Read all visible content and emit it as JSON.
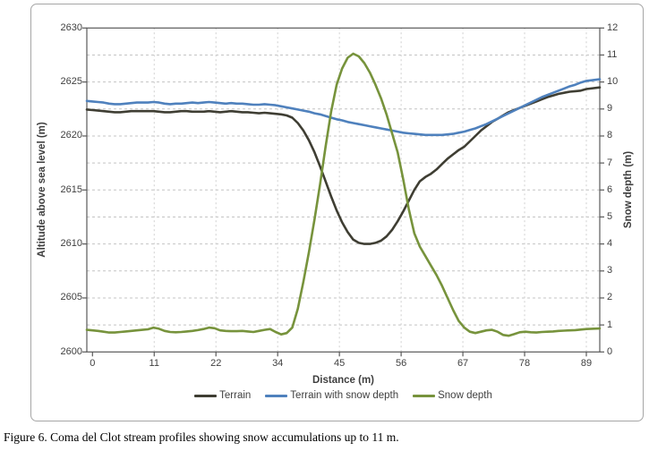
{
  "figure": {
    "caption": "Figure 6. Coma del Clot stream profiles showing snow accumulations up to 11 m."
  },
  "colors": {
    "terrain_line": "#3f3e33",
    "terrain_with_snow_line": "#4f81bd",
    "snow_depth_line": "#77933c",
    "gridline_horizontal": "#c4c4c4",
    "gridline_vertical": "#cfcfcf",
    "axis_frame": "#595959",
    "tick_text": "#3f3f3f",
    "outer_border": "#a6a6a6"
  },
  "chart_data": {
    "type": "line",
    "title": "",
    "xlabel": "Distance (m)",
    "ylabel_left": "Altitude above sea level (m)",
    "ylabel_right": "Snow depth (m)",
    "x_ticks": [
      0,
      11,
      22,
      34,
      45,
      56,
      67,
      78,
      89
    ],
    "x_start": 0,
    "x_step": 1,
    "ylim_left": [
      2600,
      2630
    ],
    "yticks_left": [
      2600,
      2605,
      2610,
      2615,
      2620,
      2625,
      2630
    ],
    "ylim_right": [
      0,
      12
    ],
    "yticks_right": [
      0,
      1,
      2,
      3,
      4,
      5,
      6,
      7,
      8,
      9,
      10,
      11,
      12
    ],
    "grid": true,
    "legend_position": "bottom",
    "series": [
      {
        "name": "Terrain",
        "axis": "left",
        "color": "#3f3e33",
        "values": [
          2622.4,
          2622.35,
          2622.3,
          2622.25,
          2622.2,
          2622.2,
          2622.25,
          2622.3,
          2622.3,
          2622.3,
          2622.3,
          2622.3,
          2622.25,
          2622.2,
          2622.2,
          2622.25,
          2622.3,
          2622.3,
          2622.25,
          2622.25,
          2622.25,
          2622.3,
          2622.25,
          2622.2,
          2622.25,
          2622.3,
          2622.25,
          2622.2,
          2622.2,
          2622.15,
          2622.1,
          2622.15,
          2622.1,
          2622.05,
          2622.0,
          2621.9,
          2621.7,
          2621.2,
          2620.5,
          2619.6,
          2618.5,
          2617.2,
          2615.8,
          2614.4,
          2613.1,
          2612.0,
          2611.1,
          2610.4,
          2610.1,
          2610.0,
          2610.0,
          2610.1,
          2610.3,
          2610.7,
          2611.3,
          2612.1,
          2613.0,
          2614.0,
          2615.0,
          2615.8,
          2616.2,
          2616.5,
          2616.9,
          2617.4,
          2617.9,
          2618.3,
          2618.7,
          2619.0,
          2619.5,
          2620.0,
          2620.5,
          2620.9,
          2621.3,
          2621.6,
          2621.9,
          2622.2,
          2622.4,
          2622.6,
          2622.8,
          2623.0,
          2623.2,
          2623.4,
          2623.6,
          2623.75,
          2623.9,
          2624.0,
          2624.1,
          2624.15,
          2624.2,
          2624.35
        ]
      },
      {
        "name": "Terrain with snow depth",
        "axis": "left",
        "color": "#4f81bd",
        "values": [
          2623.2,
          2623.15,
          2623.1,
          2623.0,
          2622.95,
          2622.95,
          2623.0,
          2623.05,
          2623.1,
          2623.1,
          2623.1,
          2623.15,
          2623.1,
          2623.0,
          2622.95,
          2623.0,
          2623.0,
          2623.05,
          2623.1,
          2623.05,
          2623.1,
          2623.15,
          2623.1,
          2623.05,
          2623.0,
          2623.05,
          2623.0,
          2623.0,
          2622.95,
          2622.9,
          2622.9,
          2622.95,
          2622.9,
          2622.85,
          2622.75,
          2622.65,
          2622.55,
          2622.45,
          2622.35,
          2622.25,
          2622.1,
          2622.0,
          2621.85,
          2621.7,
          2621.55,
          2621.45,
          2621.3,
          2621.2,
          2621.1,
          2621.0,
          2620.9,
          2620.8,
          2620.7,
          2620.6,
          2620.5,
          2620.4,
          2620.3,
          2620.25,
          2620.2,
          2620.15,
          2620.1,
          2620.1,
          2620.1,
          2620.1,
          2620.15,
          2620.2,
          2620.3,
          2620.4,
          2620.55,
          2620.7,
          2620.9,
          2621.1,
          2621.35,
          2621.6,
          2621.85,
          2622.1,
          2622.35,
          2622.6,
          2622.85,
          2623.1,
          2623.35,
          2623.6,
          2623.8,
          2624.0,
          2624.2,
          2624.4,
          2624.6,
          2624.75,
          2624.95,
          2625.1
        ]
      },
      {
        "name": "Snow depth",
        "axis": "right",
        "color": "#77933c",
        "values": [
          0.8,
          0.78,
          0.75,
          0.72,
          0.72,
          0.74,
          0.76,
          0.78,
          0.8,
          0.82,
          0.84,
          0.9,
          0.86,
          0.78,
          0.74,
          0.73,
          0.74,
          0.76,
          0.78,
          0.81,
          0.85,
          0.9,
          0.88,
          0.8,
          0.78,
          0.77,
          0.77,
          0.78,
          0.76,
          0.74,
          0.78,
          0.82,
          0.85,
          0.74,
          0.65,
          0.7,
          0.9,
          1.6,
          2.6,
          3.7,
          4.9,
          6.2,
          7.6,
          8.9,
          9.9,
          10.5,
          10.9,
          11.05,
          10.95,
          10.7,
          10.35,
          9.9,
          9.4,
          8.8,
          8.1,
          7.4,
          6.4,
          5.3,
          4.4,
          3.9,
          3.55,
          3.2,
          2.85,
          2.45,
          2.0,
          1.55,
          1.15,
          0.9,
          0.75,
          0.7,
          0.75,
          0.8,
          0.82,
          0.75,
          0.63,
          0.6,
          0.66,
          0.73,
          0.75,
          0.73,
          0.72,
          0.74,
          0.75,
          0.76,
          0.78,
          0.79,
          0.8,
          0.81,
          0.83,
          0.85
        ]
      }
    ]
  }
}
